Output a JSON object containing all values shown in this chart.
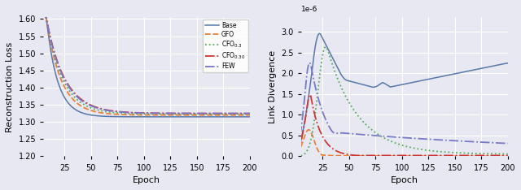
{
  "left_ylabel": "Reconstruction Loss",
  "right_ylabel": "Link Divergence",
  "xlabel": "Epoch",
  "legend_labels": [
    "Base",
    "GFO",
    "CFO_{0.3}",
    "CFO_{0.30}",
    "FEW"
  ],
  "colors": [
    "#5878a8",
    "#e8823a",
    "#58aa58",
    "#cc3838",
    "#7878c8"
  ],
  "background_color": "#e8e8f2",
  "left_ylim": [
    1.2,
    1.605
  ],
  "right_ylim": [
    0,
    3.35
  ],
  "xticks": [
    25,
    50,
    75,
    100,
    125,
    150,
    175,
    200
  ]
}
